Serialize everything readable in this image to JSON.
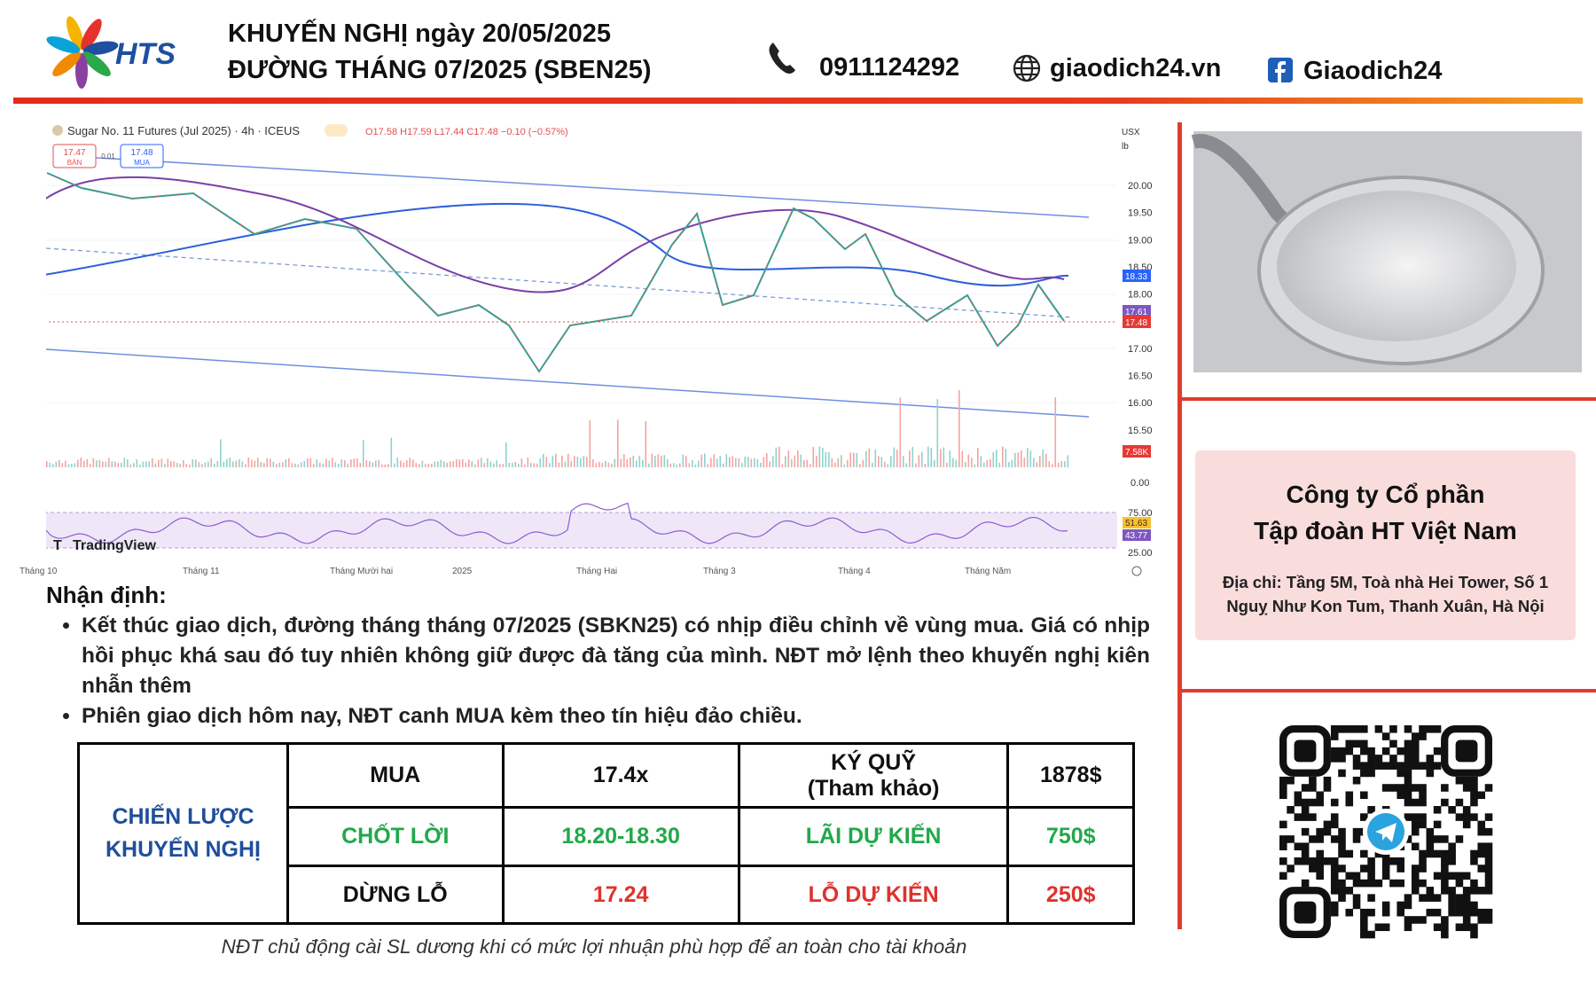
{
  "header": {
    "logo": "HTS",
    "title_line1": "KHUYẾN NGHỊ ngày 20/05/2025",
    "title_line2": "ĐƯỜNG THÁNG 07/2025 (SBEN25)",
    "phone": "0911124292",
    "website": "giaodich24.vn",
    "facebook": "Giaodich24"
  },
  "chart_screenshot": {
    "symbol": "Sugar No. 11 Futures (Jul 2025) · 4h · ICEUS",
    "ohlc": "O17.58 H17.59 L17.44 C17.48 −0.10 (−0.57%)",
    "sell_price": "17.47",
    "sell_label": "BÁN",
    "spread": "0.01",
    "buy_price": "17.48",
    "buy_label": "MUA",
    "currency": "USX",
    "unit": "lb",
    "price_labels": [
      "20.00",
      "19.50",
      "19.00",
      "18.50",
      "18.00",
      "17.00",
      "16.50",
      "16.00",
      "15.50"
    ],
    "price_badges": [
      "18.33",
      "17.61",
      "17.48"
    ],
    "volume_badge": "7.58K",
    "volume_zero": "0.00",
    "rsi_labels": [
      "75.00",
      "25.00"
    ],
    "rsi_badges": [
      "51.63",
      "43.77"
    ],
    "months": [
      "Tháng 10",
      "Tháng 11",
      "Tháng Mười hai",
      "2025",
      "Tháng Hai",
      "Tháng 3",
      "Tháng 4",
      "Tháng Năm"
    ],
    "brand": "TradingView"
  },
  "analysis": {
    "heading": "Nhận định:",
    "bullets": [
      "Kết thúc giao dịch, đường tháng tháng 07/2025 (SBKN25) có nhịp điều chỉnh về vùng mua. Giá có nhịp hồi phục khá sau đó tuy nhiên không giữ được đà tăng của mình. NĐT  mở lệnh theo khuyến nghị kiên nhẫn thêm",
      "Phiên giao dịch hôm nay, NĐT canh MUA kèm theo tín hiệu đảo chiều."
    ]
  },
  "table": {
    "strategy": [
      "CHIẾN LƯỢC",
      "KHUYẾN NGHỊ"
    ],
    "rows": [
      [
        "MUA",
        "17.4x",
        [
          "KÝ QUỸ",
          "(Tham khảo)"
        ],
        "1878$"
      ],
      [
        "CHỐT LỜI",
        "18.20-18.30",
        [
          "LÃI DỰ KIẾN"
        ],
        "750$"
      ],
      [
        "DỪNG LỖ",
        "17.24",
        [
          "LỖ DỰ KIẾN"
        ],
        "250$"
      ]
    ]
  },
  "footnote": "NĐT chủ động cài SL dương khi có mức lợi nhuận phù hợp để an toàn cho tài khoản",
  "company": {
    "name": [
      "Công ty Cổ phần",
      "Tập đoàn HT Việt Nam"
    ],
    "address": [
      "Địa chỉ: Tầng 5M, Toà nhà Hei Tower, Số 1",
      "Nguỵ Như Kon Tum, Thanh Xuân, Hà Nội"
    ]
  }
}
